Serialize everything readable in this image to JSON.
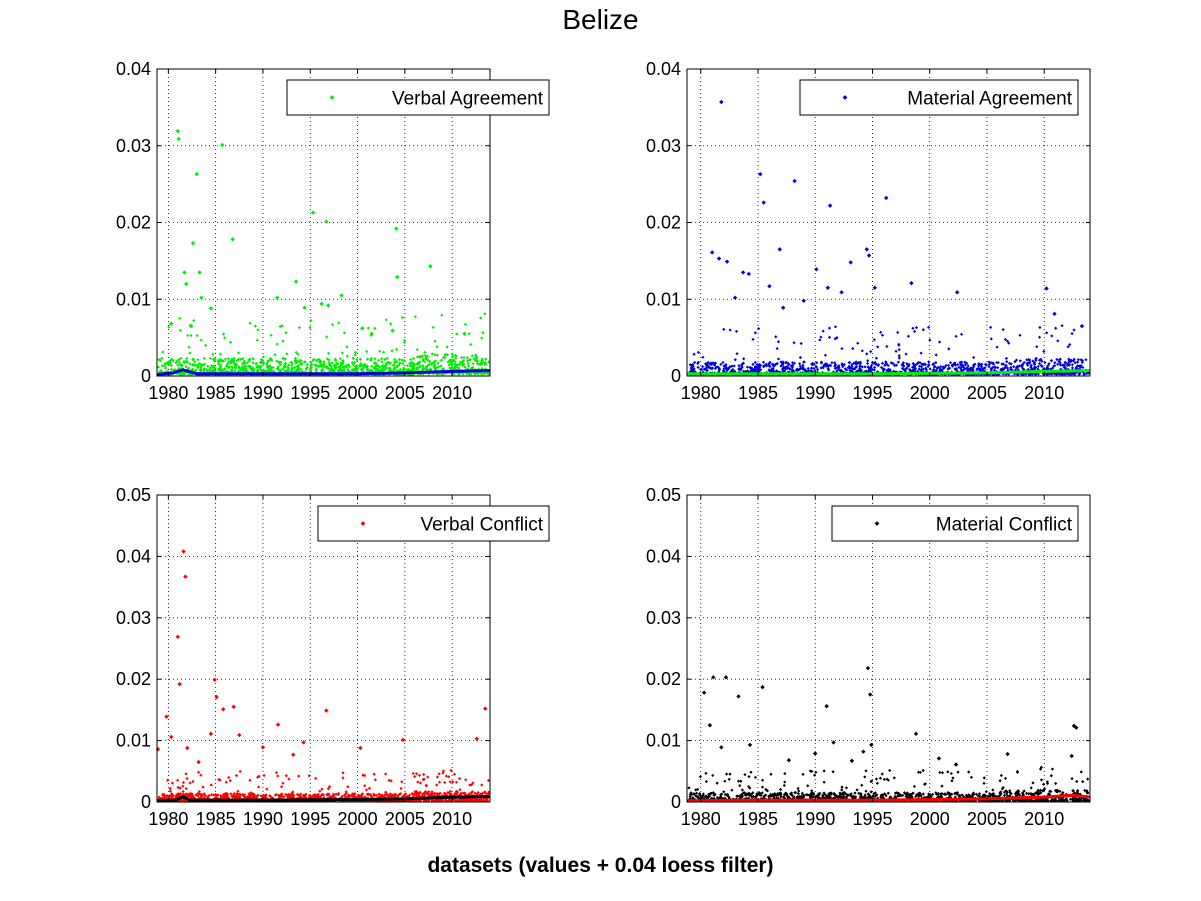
{
  "figure": {
    "title": "Belize",
    "xlabel": "datasets (values + 0.04 loess filter)"
  },
  "chart_data": [
    {
      "type": "scatter",
      "legend": "Verbal Agreement",
      "legend_position": "top-right",
      "grid": true,
      "xlim": [
        1978.8,
        2014.0
      ],
      "ylim": [
        0,
        0.04
      ],
      "xticks": [
        1980,
        1985,
        1990,
        1995,
        2000,
        2005,
        2010
      ],
      "yticks": [
        0,
        0.01,
        0.02,
        0.03,
        0.04
      ],
      "xtick_labels": [
        "1980",
        "1985",
        "1990",
        "1995",
        "2000",
        "2005",
        "2010"
      ],
      "ytick_labels": [
        "0",
        "0.01",
        "0.02",
        "0.03",
        "0.04"
      ],
      "colors": {
        "points": "#00ee00",
        "trend": "#0000dd"
      },
      "baseline": 0.0015,
      "spread": 0.005,
      "trend": [
        [
          1978.8,
          0.0002
        ],
        [
          1980.5,
          0.0004
        ],
        [
          1981.5,
          0.0008
        ],
        [
          1983,
          0.0003
        ],
        [
          1990,
          0.0003
        ],
        [
          2000,
          0.0003
        ],
        [
          2005,
          0.0004
        ],
        [
          2010,
          0.0006
        ],
        [
          2014,
          0.0007
        ]
      ],
      "series": [
        {
          "name": "Verbal Agreement",
          "points": [
            [
              1980.3,
              0.0068
            ],
            [
              1981.0,
              0.0319
            ],
            [
              1981.1,
              0.0309
            ],
            [
              1981.7,
              0.0135
            ],
            [
              1981.9,
              0.012
            ],
            [
              1982.4,
              0.0065
            ],
            [
              1982.6,
              0.0173
            ],
            [
              1983.0,
              0.0263
            ],
            [
              1983.3,
              0.0135
            ],
            [
              1983.5,
              0.0102
            ],
            [
              1984.5,
              0.0088
            ],
            [
              1985.7,
              0.0301
            ],
            [
              1986.8,
              0.0178
            ],
            [
              1991.5,
              0.0102
            ],
            [
              1993.5,
              0.0123
            ],
            [
              1994.4,
              0.0089
            ],
            [
              1995.3,
              0.0213
            ],
            [
              1996.2,
              0.0094
            ],
            [
              1996.7,
              0.0201
            ],
            [
              1996.9,
              0.0092
            ],
            [
              1998.3,
              0.0105
            ],
            [
              2000.5,
              0.0062
            ],
            [
              2001.5,
              0.0055
            ],
            [
              2003.7,
              0.0059
            ],
            [
              2004.1,
              0.0192
            ],
            [
              2004.2,
              0.0129
            ],
            [
              2007.7,
              0.0143
            ],
            [
              2011.3,
              0.0055
            ]
          ]
        }
      ]
    },
    {
      "type": "scatter",
      "legend": "Material Agreement",
      "legend_position": "top-right",
      "grid": true,
      "xlim": [
        1978.8,
        2014.0
      ],
      "ylim": [
        0,
        0.04
      ],
      "xticks": [
        1980,
        1985,
        1990,
        1995,
        2000,
        2005,
        2010
      ],
      "yticks": [
        0,
        0.01,
        0.02,
        0.03,
        0.04
      ],
      "xtick_labels": [
        "1980",
        "1985",
        "1990",
        "1995",
        "2000",
        "2005",
        "2010"
      ],
      "ytick_labels": [
        "0",
        "0.01",
        "0.02",
        "0.03",
        "0.04"
      ],
      "colors": {
        "points": "#0000dd",
        "trend": "#00ee00"
      },
      "baseline": 0.0012,
      "spread": 0.0045,
      "trend": [
        [
          1978.8,
          0.0003
        ],
        [
          1985,
          0.0003
        ],
        [
          1995,
          0.0003
        ],
        [
          2005,
          0.0004
        ],
        [
          2010,
          0.0006
        ],
        [
          2014,
          0.0007
        ]
      ],
      "series": [
        {
          "name": "Material Agreement",
          "points": [
            [
              1981.8,
              0.0357
            ],
            [
              1981.0,
              0.0161
            ],
            [
              1981.6,
              0.0153
            ],
            [
              1982.3,
              0.0149
            ],
            [
              1983.0,
              0.0102
            ],
            [
              1983.7,
              0.0135
            ],
            [
              1984.2,
              0.0133
            ],
            [
              1985.2,
              0.0263
            ],
            [
              1985.5,
              0.0226
            ],
            [
              1986.0,
              0.0117
            ],
            [
              1986.9,
              0.0165
            ],
            [
              1987.2,
              0.0089
            ],
            [
              1988.2,
              0.0254
            ],
            [
              1989.0,
              0.0098
            ],
            [
              1990.1,
              0.0139
            ],
            [
              1991.1,
              0.0115
            ],
            [
              1991.3,
              0.0222
            ],
            [
              1992.3,
              0.0109
            ],
            [
              1993.1,
              0.0148
            ],
            [
              1994.5,
              0.0165
            ],
            [
              1994.7,
              0.0157
            ],
            [
              1995.2,
              0.0115
            ],
            [
              1996.2,
              0.0232
            ],
            [
              1998.4,
              0.0121
            ],
            [
              2002.4,
              0.0109
            ],
            [
              2010.2,
              0.0114
            ],
            [
              2010.9,
              0.0081
            ],
            [
              2013.3,
              0.0065
            ]
          ]
        }
      ]
    },
    {
      "type": "scatter",
      "legend": "Verbal Conflict",
      "legend_position": "top-right",
      "grid": true,
      "xlim": [
        1978.8,
        2014.0
      ],
      "ylim": [
        0,
        0.05
      ],
      "xticks": [
        1980,
        1985,
        1990,
        1995,
        2000,
        2005,
        2010
      ],
      "yticks": [
        0,
        0.01,
        0.02,
        0.03,
        0.04,
        0.05
      ],
      "xtick_labels": [
        "1980",
        "1985",
        "1990",
        "1995",
        "2000",
        "2005",
        "2010"
      ],
      "ytick_labels": [
        "0",
        "0.01",
        "0.02",
        "0.03",
        "0.04",
        "0.05"
      ],
      "colors": {
        "points": "#ff0000",
        "trend": "#000000"
      },
      "baseline": 0.0009,
      "spread": 0.0035,
      "trend": [
        [
          1978.8,
          0.0002
        ],
        [
          1980.8,
          0.0003
        ],
        [
          1981.5,
          0.0009
        ],
        [
          1982.3,
          0.0003
        ],
        [
          1990,
          0.0003
        ],
        [
          2000,
          0.0004
        ],
        [
          2005,
          0.0005
        ],
        [
          2010,
          0.0008
        ],
        [
          2014,
          0.0009
        ]
      ],
      "series": [
        {
          "name": "Verbal Conflict",
          "points": [
            [
              1978.9,
              0.0086
            ],
            [
              1979.8,
              0.0139
            ],
            [
              1980.3,
              0.0106
            ],
            [
              1981.0,
              0.0269
            ],
            [
              1981.2,
              0.0192
            ],
            [
              1981.6,
              0.0408
            ],
            [
              1981.8,
              0.0367
            ],
            [
              1982.0,
              0.0088
            ],
            [
              1983.2,
              0.0065
            ],
            [
              1984.5,
              0.0111
            ],
            [
              1984.9,
              0.0199
            ],
            [
              1985.1,
              0.0171
            ],
            [
              1985.8,
              0.0151
            ],
            [
              1986.9,
              0.0155
            ],
            [
              1987.5,
              0.0109
            ],
            [
              1990.0,
              0.0089
            ],
            [
              1991.6,
              0.0126
            ],
            [
              1993.2,
              0.0077
            ],
            [
              1994.3,
              0.0097
            ],
            [
              1996.7,
              0.0149
            ],
            [
              2000.3,
              0.0088
            ],
            [
              2004.8,
              0.0101
            ],
            [
              2012.6,
              0.0103
            ],
            [
              2013.5,
              0.0152
            ]
          ]
        }
      ]
    },
    {
      "type": "scatter",
      "legend": "Material Conflict",
      "legend_position": "top-right",
      "grid": true,
      "xlim": [
        1978.8,
        2014.0
      ],
      "ylim": [
        0,
        0.05
      ],
      "xticks": [
        1980,
        1985,
        1990,
        1995,
        2000,
        2005,
        2010
      ],
      "yticks": [
        0,
        0.01,
        0.02,
        0.03,
        0.04,
        0.05
      ],
      "xtick_labels": [
        "1980",
        "1985",
        "1990",
        "1995",
        "2000",
        "2005",
        "2010"
      ],
      "ytick_labels": [
        "0",
        "0.01",
        "0.02",
        "0.03",
        "0.04",
        "0.05"
      ],
      "colors": {
        "points": "#000000",
        "trend": "#ff0000"
      },
      "baseline": 0.001,
      "spread": 0.0035,
      "trend": [
        [
          1978.8,
          0.0002
        ],
        [
          1985,
          0.0003
        ],
        [
          1995,
          0.0003
        ],
        [
          2005,
          0.0005
        ],
        [
          2010,
          0.0008
        ],
        [
          2012.5,
          0.0011
        ],
        [
          2014,
          0.0008
        ]
      ],
      "series": [
        {
          "name": "Material Conflict",
          "points": [
            [
              1980.3,
              0.0178
            ],
            [
              1980.8,
              0.0125
            ],
            [
              1981.1,
              0.0203
            ],
            [
              1981.8,
              0.0089
            ],
            [
              1982.2,
              0.0203
            ],
            [
              1983.3,
              0.0172
            ],
            [
              1984.3,
              0.0093
            ],
            [
              1985.4,
              0.0187
            ],
            [
              1987.7,
              0.0068
            ],
            [
              1990.0,
              0.0079
            ],
            [
              1991.0,
              0.0156
            ],
            [
              1991.6,
              0.0097
            ],
            [
              1993.2,
              0.0067
            ],
            [
              1994.2,
              0.0082
            ],
            [
              1994.6,
              0.0218
            ],
            [
              1994.8,
              0.0175
            ],
            [
              1994.9,
              0.0093
            ],
            [
              1998.8,
              0.0111
            ],
            [
              2000.8,
              0.0071
            ],
            [
              2002.3,
              0.0061
            ],
            [
              2006.8,
              0.0078
            ],
            [
              2012.6,
              0.0124
            ],
            [
              2012.8,
              0.0121
            ],
            [
              2012.4,
              0.0075
            ]
          ]
        }
      ]
    }
  ]
}
